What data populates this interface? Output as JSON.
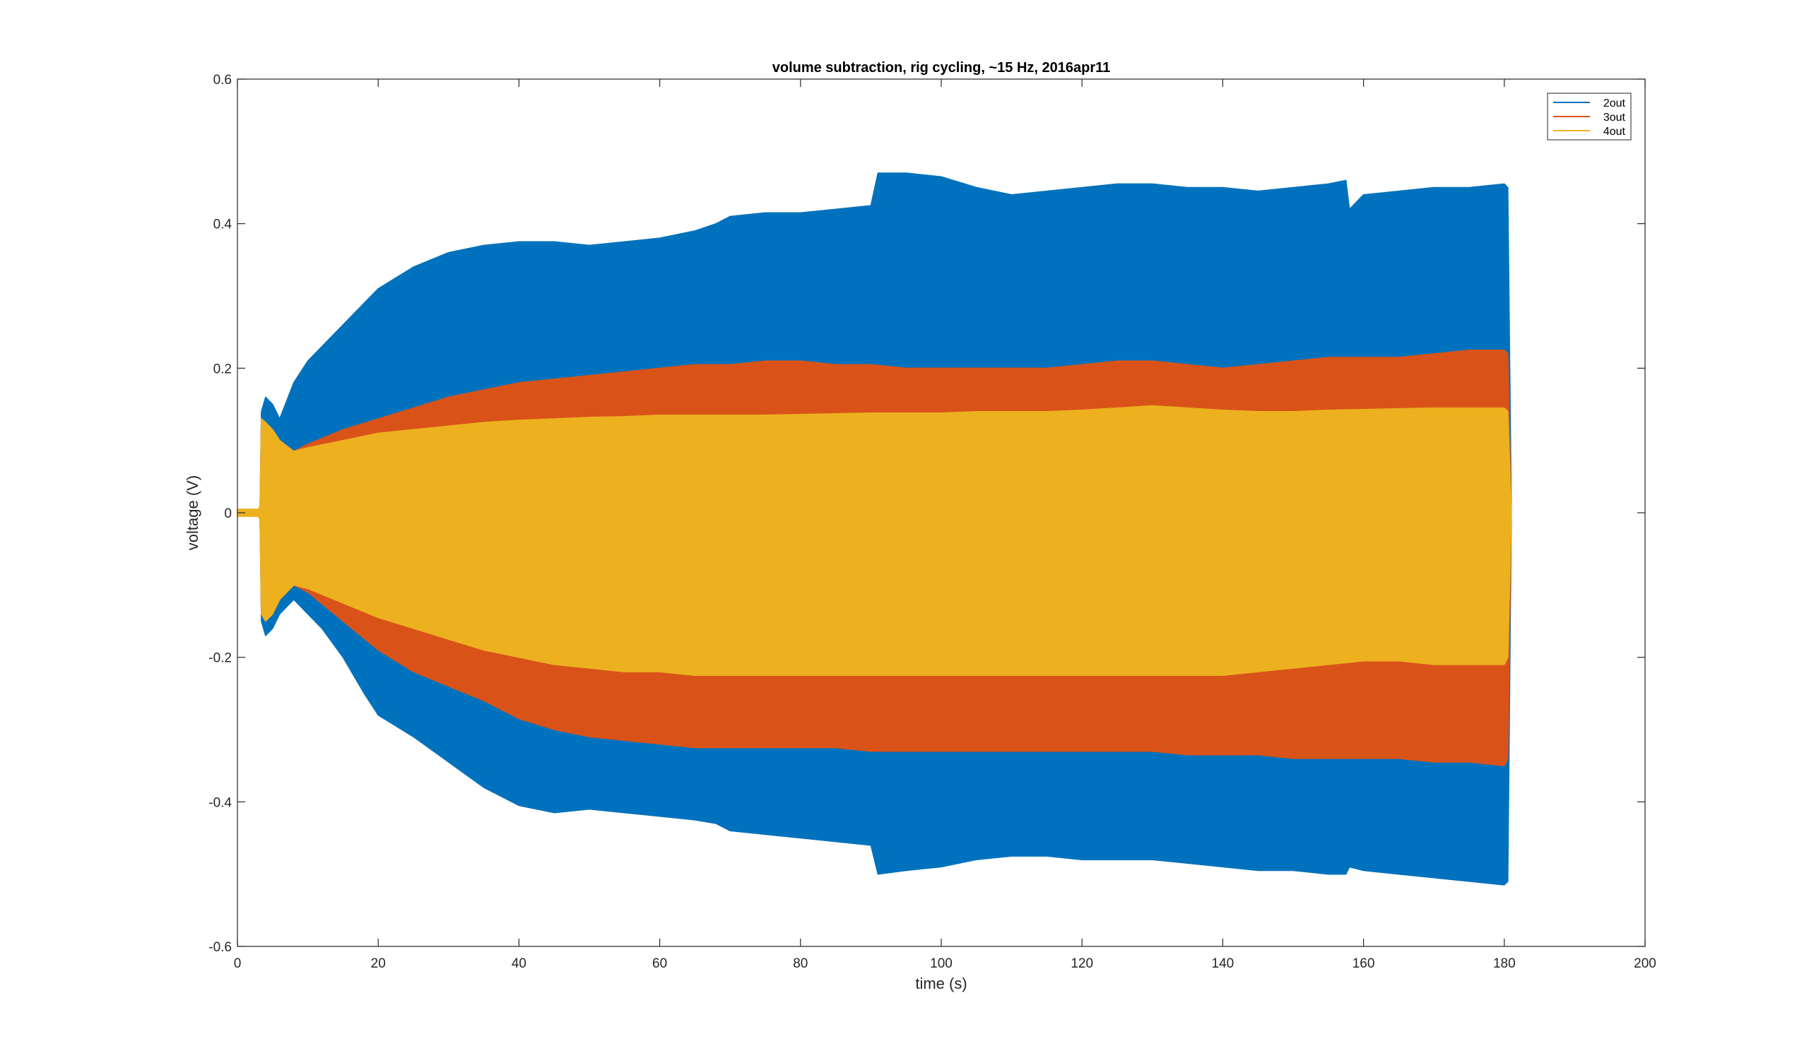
{
  "chart_data": {
    "type": "area",
    "title": "volume subtraction, rig cycling, ~15 Hz, 2016apr11",
    "xlabel": "time (s)",
    "ylabel": "voltage (V)",
    "xlim": [
      0,
      200
    ],
    "ylim": [
      -0.6,
      0.6
    ],
    "xticks": [
      0,
      20,
      40,
      60,
      80,
      100,
      120,
      140,
      160,
      180,
      200
    ],
    "yticks": [
      -0.6,
      -0.4,
      -0.2,
      0,
      0.2,
      0.4,
      0.6
    ],
    "xtick_labels": [
      "0",
      "20",
      "40",
      "60",
      "80",
      "100",
      "120",
      "140",
      "160",
      "180",
      "200"
    ],
    "ytick_labels": [
      "-0.6",
      "-0.4",
      "-0.2",
      "0",
      "0.2",
      "0.4",
      "0.6"
    ],
    "grid": false,
    "legend_position": "top-right",
    "series": [
      {
        "name": "2out",
        "color": "#0072BD",
        "envelope": {
          "t": [
            0,
            3.2,
            3.4,
            4,
            5,
            6,
            8,
            10,
            12,
            15,
            18,
            20,
            25,
            30,
            35,
            40,
            45,
            50,
            55,
            60,
            65,
            68,
            70,
            75,
            80,
            85,
            90,
            91,
            95,
            100,
            105,
            110,
            115,
            120,
            125,
            130,
            135,
            140,
            145,
            150,
            155,
            157.5,
            158,
            160,
            165,
            170,
            175,
            180,
            180.5,
            181
          ],
          "upper": [
            0,
            0,
            0.14,
            0.16,
            0.15,
            0.13,
            0.18,
            0.21,
            0.23,
            0.26,
            0.29,
            0.31,
            0.34,
            0.36,
            0.37,
            0.375,
            0.375,
            0.37,
            0.375,
            0.38,
            0.39,
            0.4,
            0.41,
            0.415,
            0.415,
            0.42,
            0.425,
            0.47,
            0.47,
            0.465,
            0.45,
            0.44,
            0.445,
            0.45,
            0.455,
            0.455,
            0.45,
            0.45,
            0.445,
            0.45,
            0.455,
            0.46,
            0.42,
            0.44,
            0.445,
            0.45,
            0.45,
            0.455,
            0.45,
            0
          ],
          "lower": [
            0,
            0,
            -0.15,
            -0.17,
            -0.16,
            -0.14,
            -0.12,
            -0.14,
            -0.16,
            -0.2,
            -0.25,
            -0.28,
            -0.31,
            -0.345,
            -0.38,
            -0.405,
            -0.415,
            -0.41,
            -0.415,
            -0.42,
            -0.425,
            -0.43,
            -0.44,
            -0.445,
            -0.45,
            -0.455,
            -0.46,
            -0.5,
            -0.495,
            -0.49,
            -0.48,
            -0.475,
            -0.475,
            -0.48,
            -0.48,
            -0.48,
            -0.485,
            -0.49,
            -0.495,
            -0.495,
            -0.5,
            -0.5,
            -0.49,
            -0.495,
            -0.5,
            -0.505,
            -0.51,
            -0.515,
            -0.51,
            0
          ]
        }
      },
      {
        "name": "3out",
        "color": "#D95319",
        "envelope": {
          "t": [
            0,
            3.2,
            3.4,
            4,
            5,
            6,
            8,
            10,
            15,
            20,
            25,
            30,
            35,
            40,
            45,
            50,
            55,
            60,
            65,
            70,
            75,
            80,
            85,
            90,
            95,
            100,
            105,
            110,
            115,
            120,
            125,
            130,
            135,
            140,
            145,
            150,
            155,
            160,
            165,
            170,
            175,
            180,
            180.5,
            181
          ],
          "upper": [
            0,
            0,
            0.13,
            0.12,
            0.11,
            0.1,
            0.085,
            0.095,
            0.115,
            0.13,
            0.145,
            0.16,
            0.17,
            0.18,
            0.185,
            0.19,
            0.195,
            0.2,
            0.205,
            0.205,
            0.21,
            0.21,
            0.205,
            0.205,
            0.2,
            0.2,
            0.2,
            0.2,
            0.2,
            0.205,
            0.21,
            0.21,
            0.205,
            0.2,
            0.205,
            0.21,
            0.215,
            0.215,
            0.215,
            0.22,
            0.225,
            0.225,
            0.22,
            0
          ],
          "lower": [
            0,
            0,
            -0.14,
            -0.15,
            -0.14,
            -0.12,
            -0.1,
            -0.11,
            -0.15,
            -0.19,
            -0.22,
            -0.24,
            -0.26,
            -0.285,
            -0.3,
            -0.31,
            -0.315,
            -0.32,
            -0.325,
            -0.325,
            -0.325,
            -0.325,
            -0.325,
            -0.33,
            -0.33,
            -0.33,
            -0.33,
            -0.33,
            -0.33,
            -0.33,
            -0.33,
            -0.33,
            -0.335,
            -0.335,
            -0.335,
            -0.34,
            -0.34,
            -0.34,
            -0.34,
            -0.345,
            -0.345,
            -0.35,
            -0.34,
            0
          ]
        }
      },
      {
        "name": "4out",
        "color": "#EDB120",
        "envelope": {
          "t": [
            0,
            3,
            3.2,
            3.4,
            4,
            5,
            6,
            8,
            10,
            15,
            20,
            25,
            30,
            35,
            40,
            45,
            50,
            55,
            60,
            65,
            70,
            75,
            80,
            85,
            90,
            95,
            100,
            105,
            110,
            115,
            120,
            125,
            130,
            135,
            140,
            145,
            150,
            155,
            160,
            165,
            170,
            175,
            180,
            180.5,
            181
          ],
          "upper": [
            0.005,
            0.005,
            0.01,
            0.13,
            0.125,
            0.115,
            0.1,
            0.085,
            0.09,
            0.1,
            0.11,
            0.115,
            0.12,
            0.125,
            0.128,
            0.13,
            0.132,
            0.133,
            0.135,
            0.135,
            0.135,
            0.135,
            0.136,
            0.137,
            0.138,
            0.138,
            0.138,
            0.14,
            0.14,
            0.14,
            0.142,
            0.145,
            0.148,
            0.145,
            0.142,
            0.14,
            0.14,
            0.142,
            0.143,
            0.144,
            0.145,
            0.145,
            0.145,
            0.14,
            0
          ],
          "lower": [
            -0.005,
            -0.005,
            -0.01,
            -0.14,
            -0.15,
            -0.14,
            -0.12,
            -0.1,
            -0.105,
            -0.125,
            -0.145,
            -0.16,
            -0.175,
            -0.19,
            -0.2,
            -0.21,
            -0.215,
            -0.22,
            -0.22,
            -0.225,
            -0.225,
            -0.225,
            -0.225,
            -0.225,
            -0.225,
            -0.225,
            -0.225,
            -0.225,
            -0.225,
            -0.225,
            -0.225,
            -0.225,
            -0.225,
            -0.225,
            -0.225,
            -0.22,
            -0.215,
            -0.21,
            -0.205,
            -0.205,
            -0.21,
            -0.21,
            -0.21,
            -0.2,
            0
          ]
        }
      }
    ]
  }
}
